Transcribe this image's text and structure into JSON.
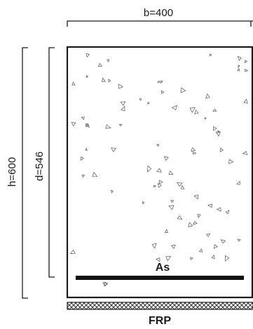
{
  "dimensions": {
    "width_label": "b=400",
    "height_label": "h=600",
    "effective_depth_label": "d=546"
  },
  "reinforcement": {
    "steel_label": "As",
    "frp_label": "FRP"
  },
  "colors": {
    "line": "#1a1a1a",
    "aggregate": "#555555",
    "frp_hatch": "#333333",
    "background": "#ffffff"
  }
}
